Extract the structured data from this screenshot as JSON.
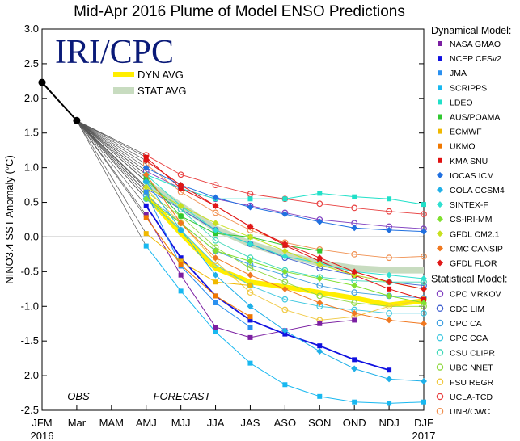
{
  "chart_data": {
    "type": "line",
    "title": "Mid-Apr 2016 Plume of Model ENSO Predictions",
    "logo_text": "IRI/CPC",
    "ylabel": "NINO3.4 SST Anomaly (°C)",
    "xlabel": "",
    "categories": [
      "JFM",
      "Mar",
      "MAM",
      "AMJ",
      "MJJ",
      "JJA",
      "JAS",
      "ASO",
      "SON",
      "OND",
      "NDJ",
      "DJF"
    ],
    "year_labels": [
      {
        "label": "2016",
        "at": 0
      },
      {
        "label": "2017",
        "at": 11
      }
    ],
    "ylim": [
      -2.5,
      3.0
    ],
    "yticks": [
      -2.5,
      -2.0,
      -1.5,
      -1.0,
      -0.5,
      0.0,
      0.5,
      1.0,
      1.5,
      2.0,
      2.5,
      3.0
    ],
    "ytick_labels": [
      "-2.5",
      "-2.0",
      "-1.5",
      "-1.0",
      "-0.5",
      "0.0",
      "0.5",
      "1.0",
      "1.5",
      "2.0",
      "2.5",
      "3.0"
    ],
    "annotations": {
      "obs": "OBS",
      "forecast": "FORECAST"
    },
    "observed": {
      "x": [
        0,
        1
      ],
      "values": [
        2.23,
        1.68
      ],
      "color": "#000000"
    },
    "averages": [
      {
        "name": "DYN AVG",
        "color": "#ffee00",
        "x": [
          3,
          4,
          5,
          6,
          7,
          8,
          9,
          10,
          11
        ],
        "values": [
          0.6,
          0.05,
          -0.45,
          -0.65,
          -0.72,
          -0.8,
          -0.88,
          -0.98,
          -0.92
        ]
      },
      {
        "name": "STAT AVG",
        "color": "#c8dcc0",
        "x": [
          3,
          4,
          5,
          6,
          7,
          8,
          9,
          10,
          11
        ],
        "values": [
          0.78,
          0.45,
          0.12,
          -0.1,
          -0.25,
          -0.38,
          -0.45,
          -0.48,
          -0.48
        ]
      }
    ],
    "legend_dynamical_title": "Dynamical Model:",
    "legend_statistical_title": "Statistical Model:",
    "dynamical": [
      {
        "name": "NASA GMAO",
        "color": "#7b1fa2",
        "x": [
          3,
          4,
          5,
          6,
          7,
          8,
          9,
          10
        ],
        "values": [
          0.32,
          -0.55,
          -1.3,
          -1.45,
          -1.35,
          -1.25,
          -1.2,
          null
        ]
      },
      {
        "name": "NCEP CFSv2",
        "color": "#1010e0",
        "x": [
          3,
          4,
          5,
          6,
          7,
          8,
          9,
          10,
          11
        ],
        "values": [
          0.45,
          -0.3,
          -0.85,
          -1.2,
          -1.4,
          -1.57,
          -1.77,
          -1.92,
          null
        ]
      },
      {
        "name": "JMA",
        "color": "#2a90f0",
        "x": [
          3,
          4,
          5,
          6,
          7,
          8,
          9,
          10
        ],
        "values": [
          0.65,
          -0.42,
          -0.95,
          -1.3,
          null,
          null,
          null,
          null
        ]
      },
      {
        "name": "SCRIPPS",
        "color": "#18b8f0",
        "x": [
          3,
          4,
          5,
          6,
          7,
          8,
          9,
          10,
          11
        ],
        "values": [
          -0.13,
          -0.78,
          -1.37,
          -1.82,
          -2.13,
          -2.3,
          -2.38,
          -2.4,
          -2.38
        ]
      },
      {
        "name": "LDEO",
        "color": "#20e0c8",
        "x": [
          3,
          4,
          5,
          6,
          7,
          8,
          9,
          10,
          11
        ],
        "values": [
          0.9,
          0.7,
          0.55,
          0.55,
          0.55,
          0.63,
          0.58,
          0.55,
          0.47
        ]
      },
      {
        "name": "AUS/POAMA",
        "color": "#30c830",
        "x": [
          3,
          4,
          5,
          6,
          7,
          8,
          9,
          10
        ],
        "values": [
          0.85,
          0.3,
          0.05,
          0.0,
          -0.12,
          -0.2,
          null,
          null
        ]
      },
      {
        "name": "ECMWF",
        "color": "#f0b800",
        "x": [
          3,
          4,
          5,
          6,
          7,
          8
        ],
        "values": [
          0.05,
          -0.35,
          -0.65,
          -0.7,
          null,
          null
        ]
      },
      {
        "name": "UKMO",
        "color": "#f07800",
        "x": [
          3,
          4,
          5,
          6
        ],
        "values": [
          0.28,
          -0.4,
          -0.85,
          -1.15
        ]
      },
      {
        "name": "KMA SNU",
        "color": "#e01010",
        "x": [
          3,
          4,
          5,
          6,
          7,
          8,
          9,
          10,
          11
        ],
        "values": [
          1.15,
          0.7,
          0.45,
          0.15,
          -0.12,
          -0.35,
          -0.55,
          -0.75,
          -0.9
        ]
      },
      {
        "name": "IOCAS ICM",
        "color": "#2070e0",
        "x": [
          3,
          4,
          5,
          6,
          7,
          8,
          9,
          10,
          11
        ],
        "values": [
          1.0,
          0.75,
          0.57,
          0.43,
          0.33,
          0.22,
          0.13,
          0.1,
          0.08
        ]
      },
      {
        "name": "COLA CCSM4",
        "color": "#20b0e8",
        "x": [
          3,
          4,
          5,
          6,
          7,
          8,
          9,
          10,
          11
        ],
        "values": [
          0.8,
          0.1,
          -0.55,
          -1.0,
          -1.35,
          -1.65,
          -1.9,
          -2.05,
          -2.08
        ]
      },
      {
        "name": "SINTEX-F",
        "color": "#30e0d0",
        "x": [
          3,
          4,
          5,
          6,
          7,
          8,
          9,
          10,
          11
        ],
        "values": [
          0.9,
          0.45,
          0.1,
          -0.1,
          -0.28,
          -0.38,
          -0.5,
          -0.55,
          -0.6
        ]
      },
      {
        "name": "CS-IRI-MM",
        "color": "#80e030",
        "x": [
          3,
          4,
          5,
          6,
          7,
          8,
          9,
          10,
          11
        ],
        "values": [
          0.55,
          0.2,
          -0.2,
          -0.35,
          -0.5,
          -0.6,
          -0.7,
          -0.85,
          -0.95
        ]
      },
      {
        "name": "GFDL CM2.1",
        "color": "#c8e020",
        "x": [
          3,
          4,
          5,
          6,
          7,
          8,
          9,
          10,
          11
        ],
        "values": [
          0.72,
          0.45,
          0.2,
          0.0,
          -0.2,
          -0.4,
          -0.55,
          -0.65,
          -0.75
        ]
      },
      {
        "name": "CMC CANSIP",
        "color": "#f07820",
        "x": [
          3,
          4,
          5,
          6,
          7,
          8,
          9,
          10,
          11
        ],
        "values": [
          0.9,
          0.2,
          -0.3,
          -0.55,
          -0.75,
          -0.95,
          -1.1,
          -1.2,
          -1.25
        ]
      },
      {
        "name": "GFDL FLOR",
        "color": "#e01818",
        "x": [
          3,
          4,
          5,
          6,
          7,
          8,
          9,
          10,
          11
        ],
        "values": [
          1.1,
          0.75,
          0.45,
          0.15,
          -0.1,
          -0.3,
          -0.5,
          -0.65,
          -0.75
        ]
      }
    ],
    "statistical": [
      {
        "name": "CPC MRKOV",
        "color": "#8040c0",
        "x": [
          3,
          4,
          5,
          6,
          7,
          8,
          9,
          10,
          11
        ],
        "values": [
          0.95,
          0.7,
          0.55,
          0.45,
          0.35,
          0.25,
          0.2,
          0.15,
          0.12
        ]
      },
      {
        "name": "CDC LIM",
        "color": "#4060d0",
        "x": [
          3,
          4,
          5,
          6,
          7,
          8,
          9,
          10,
          11
        ],
        "values": [
          0.7,
          0.4,
          0.1,
          -0.1,
          -0.3,
          -0.45,
          -0.55,
          -0.65,
          -0.7
        ]
      },
      {
        "name": "CPC CA",
        "color": "#40a0e0",
        "x": [
          3,
          4,
          5,
          6,
          7,
          8,
          9,
          10,
          11
        ],
        "values": [
          0.6,
          0.2,
          -0.2,
          -0.4,
          -0.55,
          -0.7,
          -0.8,
          -0.85,
          -0.88
        ]
      },
      {
        "name": "CPC CCA",
        "color": "#40c8e0",
        "x": [
          3,
          4,
          5,
          6,
          7,
          8,
          9,
          10,
          11
        ],
        "values": [
          0.55,
          0.1,
          -0.4,
          -0.7,
          -0.9,
          -1.0,
          -1.05,
          -1.1,
          -1.1
        ]
      },
      {
        "name": "CSU CLIPR",
        "color": "#40d8b8",
        "x": [
          3,
          4,
          5,
          6,
          7,
          8,
          9,
          10,
          11
        ],
        "values": [
          0.8,
          0.4,
          -0.05,
          -0.3,
          -0.48,
          -0.58,
          -0.63,
          -0.65,
          -0.65
        ]
      },
      {
        "name": "UBC NNET",
        "color": "#90d840",
        "x": [
          3,
          4,
          5,
          6,
          7,
          8,
          9,
          10,
          11
        ],
        "values": [
          0.65,
          0.3,
          -0.15,
          -0.45,
          -0.65,
          -0.85,
          -0.95,
          -1.0,
          -1.0
        ]
      },
      {
        "name": "FSU REGR",
        "color": "#f0c840",
        "x": [
          3,
          4,
          5,
          6,
          7,
          8,
          9,
          10,
          11
        ],
        "values": [
          0.7,
          0.2,
          -0.35,
          -0.8,
          -1.05,
          -1.2,
          -1.15,
          -1.0,
          -0.9
        ]
      },
      {
        "name": "UCLA-TCD",
        "color": "#e84040",
        "x": [
          3,
          4,
          5,
          6,
          7,
          8,
          9,
          10,
          11
        ],
        "values": [
          1.18,
          0.9,
          0.75,
          0.62,
          0.55,
          0.48,
          0.42,
          0.37,
          0.33
        ]
      },
      {
        "name": "UNB/CWC",
        "color": "#f09050",
        "x": [
          3,
          4,
          5,
          6,
          7,
          8,
          9,
          10,
          11
        ],
        "values": [
          1.05,
          0.65,
          0.35,
          0.1,
          -0.08,
          -0.18,
          -0.25,
          -0.3,
          -0.28
        ]
      }
    ]
  }
}
